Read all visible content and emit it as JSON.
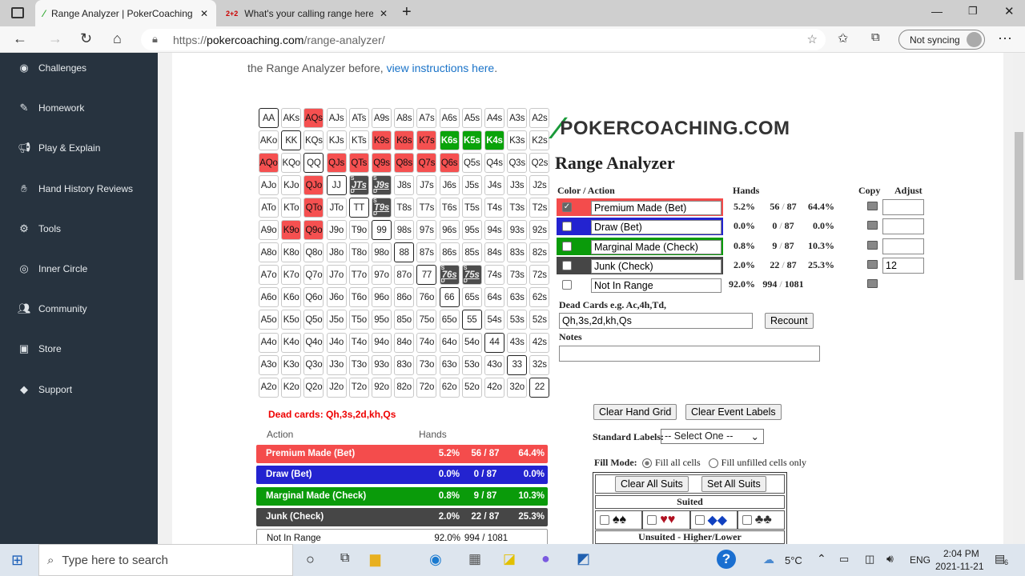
{
  "browser": {
    "tabs": [
      {
        "title": "Range Analyzer | PokerCoaching"
      },
      {
        "title": "What's your calling range here -",
        "favicon": "2+2"
      }
    ],
    "url_prefix": "https://",
    "url_domain": "pokercoaching.com",
    "url_path": "/range-analyzer/",
    "sync": "Not syncing"
  },
  "sidebar": {
    "items": [
      {
        "label": "Challenges",
        "icon": "compass-icon"
      },
      {
        "label": "Homework",
        "icon": "edit-icon"
      },
      {
        "label": "Play & Explain",
        "icon": "megaphone-icon"
      },
      {
        "label": "Hand History Reviews",
        "icon": "hand-icon"
      },
      {
        "label": "Tools",
        "icon": "gear-icon"
      },
      {
        "label": "Inner Circle",
        "icon": "target-icon"
      },
      {
        "label": "Community",
        "icon": "users-icon"
      },
      {
        "label": "Store",
        "icon": "store-icon"
      },
      {
        "label": "Support",
        "icon": "tag-icon"
      }
    ]
  },
  "intro": {
    "text": "the Range Analyzer before, ",
    "link": "view instructions here",
    "end": "."
  },
  "grid": {
    "rows": [
      [
        "AA",
        "AKs",
        "AQs",
        "AJs",
        "ATs",
        "A9s",
        "A8s",
        "A7s",
        "A6s",
        "A5s",
        "A4s",
        "A3s",
        "A2s"
      ],
      [
        "AKo",
        "KK",
        "KQs",
        "KJs",
        "KTs",
        "K9s",
        "K8s",
        "K7s",
        "K6s",
        "K5s",
        "K4s",
        "K3s",
        "K2s"
      ],
      [
        "AQo",
        "KQo",
        "QQ",
        "QJs",
        "QTs",
        "Q9s",
        "Q8s",
        "Q7s",
        "Q6s",
        "Q5s",
        "Q4s",
        "Q3s",
        "Q2s"
      ],
      [
        "AJo",
        "KJo",
        "QJo",
        "JJ",
        "JTs",
        "J9s",
        "J8s",
        "J7s",
        "J6s",
        "J5s",
        "J4s",
        "J3s",
        "J2s"
      ],
      [
        "ATo",
        "KTo",
        "QTo",
        "JTo",
        "TT",
        "T9s",
        "T8s",
        "T7s",
        "T6s",
        "T5s",
        "T4s",
        "T3s",
        "T2s"
      ],
      [
        "A9o",
        "K9o",
        "Q9o",
        "J9o",
        "T9o",
        "99",
        "98s",
        "97s",
        "96s",
        "95s",
        "94s",
        "93s",
        "92s"
      ],
      [
        "A8o",
        "K8o",
        "Q8o",
        "J8o",
        "T8o",
        "98o",
        "88",
        "87s",
        "86s",
        "85s",
        "84s",
        "83s",
        "82s"
      ],
      [
        "A7o",
        "K7o",
        "Q7o",
        "J7o",
        "T7o",
        "97o",
        "87o",
        "77",
        "76s",
        "75s",
        "74s",
        "73s",
        "72s"
      ],
      [
        "A6o",
        "K6o",
        "Q6o",
        "J6o",
        "T6o",
        "96o",
        "86o",
        "76o",
        "66",
        "65s",
        "64s",
        "63s",
        "62s"
      ],
      [
        "A5o",
        "K5o",
        "Q5o",
        "J5o",
        "T5o",
        "95o",
        "85o",
        "75o",
        "65o",
        "55",
        "54s",
        "53s",
        "52s"
      ],
      [
        "A4o",
        "K4o",
        "Q4o",
        "J4o",
        "T4o",
        "94o",
        "84o",
        "74o",
        "64o",
        "54o",
        "44",
        "43s",
        "42s"
      ],
      [
        "A3o",
        "K3o",
        "Q3o",
        "J3o",
        "T3o",
        "93o",
        "83o",
        "73o",
        "63o",
        "53o",
        "43o",
        "33",
        "32s"
      ],
      [
        "A2o",
        "K2o",
        "Q2o",
        "J2o",
        "T2o",
        "92o",
        "82o",
        "72o",
        "62o",
        "52o",
        "42o",
        "32o",
        "22"
      ]
    ],
    "red": [
      "AQs",
      "K9s",
      "K8s",
      "K7s",
      "QJs",
      "QTs",
      "Q9s",
      "Q8s",
      "Q7s",
      "Q6s",
      "AQo",
      "QJo",
      "QTo",
      "K9o",
      "Q9o"
    ],
    "green": [
      "K6s",
      "K5s",
      "K4s"
    ],
    "dark": [
      "JTs",
      "J9s",
      "T9s",
      "76s",
      "75s"
    ],
    "dark_suit_marks": {
      "top": "S",
      "bottom": "D"
    }
  },
  "dead_cards_note": "Dead cards: Qh,3s,2d,kh,Qs",
  "bottom_table": {
    "headers": {
      "action": "Action",
      "hands": "Hands"
    },
    "rows": [
      {
        "label": "Premium Made (Bet)",
        "pct": "5.2%",
        "count": "56 / 87",
        "share": "64.4%",
        "color": "#f44c4c"
      },
      {
        "label": "Draw (Bet)",
        "pct": "0.0%",
        "count": "0 / 87",
        "share": "0.0%",
        "color": "#2323d0"
      },
      {
        "label": "Marginal Made (Check)",
        "pct": "0.8%",
        "count": "9 / 87",
        "share": "10.3%",
        "color": "#0a9b0a"
      },
      {
        "label": "Junk (Check)",
        "pct": "2.0%",
        "count": "22 / 87",
        "share": "25.3%",
        "color": "#464646"
      },
      {
        "label": "Not In Range",
        "pct": "92.0%",
        "count": "994 / 1081",
        "share": "",
        "color": "#ffffff"
      }
    ]
  },
  "logo": "POKERCOACHING.COM",
  "panel": {
    "title": "Range Analyzer",
    "headers": {
      "color_action": "Color / Action",
      "hands": "Hands",
      "copy": "Copy",
      "adjust": "Adjust"
    },
    "rows": [
      {
        "label": "Premium Made (Bet)",
        "checked": true,
        "pct": "5.2%",
        "count": "56",
        "total": "87",
        "share": "64.4%",
        "adjust": "",
        "color": "#f44c4c"
      },
      {
        "label": "Draw (Bet)",
        "checked": false,
        "pct": "0.0%",
        "count": "0",
        "total": "87",
        "share": "0.0%",
        "adjust": "",
        "color": "#2323d0"
      },
      {
        "label": "Marginal Made (Check)",
        "checked": false,
        "pct": "0.8%",
        "count": "9",
        "total": "87",
        "share": "10.3%",
        "adjust": "",
        "color": "#0a9b0a"
      },
      {
        "label": "Junk (Check)",
        "checked": false,
        "pct": "2.0%",
        "count": "22",
        "total": "87",
        "share": "25.3%",
        "adjust": "12",
        "color": "#464646"
      },
      {
        "label": "Not In Range",
        "checked": false,
        "pct": "92.0%",
        "count": "994",
        "total": "1081",
        "share": ""
      }
    ],
    "dead_label": "Dead Cards e.g. Ac,4h,Td,",
    "dead_value": "Qh,3s,2d,kh,Qs",
    "recount": "Recount",
    "notes_label": "Notes",
    "notes_value": "",
    "clear_grid": "Clear Hand Grid",
    "clear_labels": "Clear Event Labels",
    "std_label": "Standard Labels:",
    "std_value": "-- Select One --",
    "fill_label": "Fill Mode:",
    "fill_all": "Fill all cells",
    "fill_unfilled": "Fill unfilled cells only",
    "fill_selected": "Fill all cells",
    "clear_suits": "Clear All Suits",
    "set_suits": "Set All Suits",
    "suited": "Suited",
    "unsuited": "Unsuited - Higher/Lower"
  },
  "taskbar": {
    "search": "Type here to search",
    "temp": "5°C",
    "lang": "ENG",
    "time": "2:04 PM",
    "date": "2021-11-21",
    "notif": "6"
  }
}
